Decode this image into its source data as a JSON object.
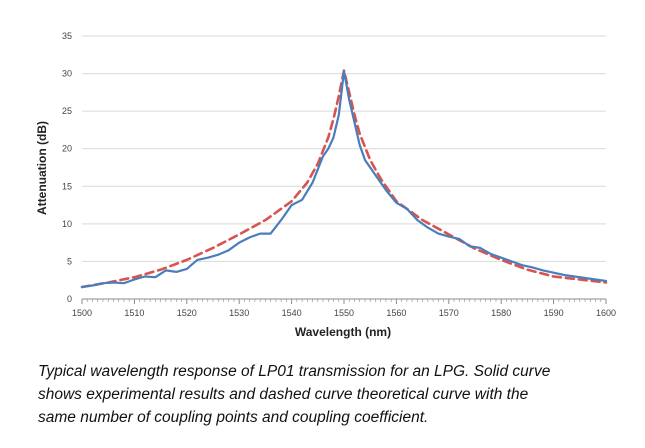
{
  "chart_data": {
    "type": "line",
    "title": "",
    "xlabel": "Wavelength (nm)",
    "ylabel": "Attenuation (dB)",
    "xlim": [
      1500,
      1600
    ],
    "ylim": [
      0,
      35
    ],
    "xticks": [
      1500,
      1510,
      1520,
      1530,
      1540,
      1550,
      1560,
      1570,
      1580,
      1590,
      1600
    ],
    "yticks": [
      0,
      5,
      10,
      15,
      20,
      25,
      30,
      35
    ],
    "grid": "horizontal",
    "series": [
      {
        "name": "Experimental (solid)",
        "style": "solid",
        "color": "#4a7ebb",
        "x": [
          1500,
          1502,
          1504,
          1506,
          1508,
          1510,
          1512,
          1514,
          1516,
          1518,
          1520,
          1522,
          1524,
          1526,
          1528,
          1530,
          1532,
          1534,
          1536,
          1538,
          1540,
          1542,
          1544,
          1546,
          1547,
          1548,
          1549,
          1550,
          1551,
          1552,
          1553,
          1554,
          1556,
          1558,
          1560,
          1562,
          1564,
          1566,
          1568,
          1570,
          1572,
          1574,
          1576,
          1578,
          1580,
          1582,
          1584,
          1586,
          1588,
          1590,
          1592,
          1594,
          1596,
          1598,
          1600
        ],
        "y": [
          1.6,
          1.8,
          2.1,
          2.2,
          2.1,
          2.6,
          3.0,
          2.9,
          3.8,
          3.6,
          4.0,
          5.2,
          5.5,
          5.9,
          6.5,
          7.5,
          8.2,
          8.7,
          8.7,
          10.5,
          12.5,
          13.2,
          15.5,
          19.0,
          20.0,
          21.5,
          24.5,
          30.3,
          26.5,
          23.5,
          20.5,
          18.5,
          16.5,
          14.5,
          12.8,
          12.0,
          10.5,
          9.5,
          8.7,
          8.3,
          8.0,
          7.0,
          6.8,
          6.0,
          5.5,
          5.0,
          4.5,
          4.2,
          3.8,
          3.5,
          3.2,
          3.0,
          2.8,
          2.6,
          2.4
        ]
      },
      {
        "name": "Theoretical (dashed)",
        "style": "dashed",
        "color": "#d9534f",
        "x": [
          1500,
          1505,
          1510,
          1515,
          1520,
          1525,
          1530,
          1535,
          1540,
          1543,
          1545,
          1547,
          1548,
          1549,
          1550,
          1551,
          1552,
          1553,
          1555,
          1557,
          1560,
          1565,
          1570,
          1575,
          1580,
          1585,
          1590,
          1595,
          1600
        ],
        "y": [
          1.6,
          2.2,
          2.9,
          3.9,
          5.2,
          6.8,
          8.6,
          10.5,
          13.0,
          15.5,
          18.0,
          21.5,
          24.0,
          27.0,
          30.4,
          27.5,
          24.5,
          22.0,
          18.5,
          16.0,
          13.0,
          10.5,
          8.6,
          6.7,
          5.2,
          3.9,
          3.0,
          2.6,
          2.2
        ]
      }
    ]
  },
  "caption": {
    "line1": "Typical wavelength response of LP01 transmission for an LPG. Solid curve",
    "line2": "shows experimental results and dashed curve theoretical curve with the",
    "line3": "same number of coupling points and coupling coefficient."
  }
}
